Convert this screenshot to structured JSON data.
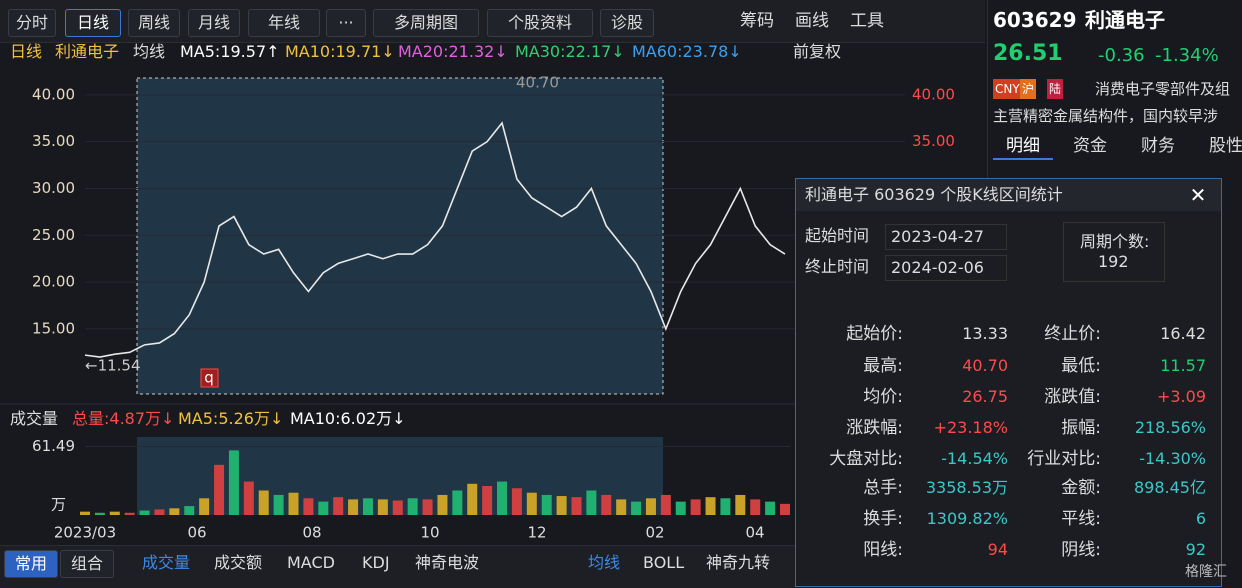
{
  "toolbar": {
    "left": [
      "分时",
      "日线",
      "周线",
      "月线",
      "年线",
      "···",
      "多周期图",
      "个股资料",
      "诊股"
    ],
    "right": [
      "筹码",
      "画线",
      "工具"
    ]
  },
  "legend": {
    "period": "日线",
    "name": "利通电子",
    "label": "均线",
    "ma": [
      "MA5:19.57↑",
      "MA10:19.71↓",
      "MA20:21.32↓",
      "MA30:22.17↓",
      "MA60:23.78↓"
    ],
    "adjust": "前复权"
  },
  "chart_data": {
    "type": "line",
    "color": "#e8e8e8",
    "ylim": [
      8.05,
      41.8
    ],
    "yticks": [
      {
        "value": 40,
        "label": "40.00"
      },
      {
        "value": 35,
        "label": "35.00"
      },
      {
        "value": 30,
        "label": "30.00"
      },
      {
        "value": 25,
        "label": "25.00"
      },
      {
        "value": 20,
        "label": "20.00"
      },
      {
        "value": 15,
        "label": "15.00"
      }
    ],
    "x_labels": [
      "2023/03",
      "06",
      "08",
      "10",
      "12",
      "02",
      "04"
    ],
    "values": [
      12.2,
      12.0,
      12.3,
      12.5,
      13.3,
      13.5,
      14.5,
      16.5,
      20,
      26,
      27,
      24,
      23,
      23.5,
      21,
      19,
      21,
      22,
      22.5,
      23,
      22.5,
      23,
      23,
      24,
      26,
      30,
      34,
      35,
      37,
      31,
      29,
      28,
      27,
      28,
      30,
      26,
      24,
      22,
      19,
      15,
      19,
      22,
      24,
      27,
      30,
      26,
      24,
      23
    ],
    "annotations": {
      "high": "40.70",
      "low": "←11.54",
      "marker": "q"
    }
  },
  "volume": {
    "type": "bar",
    "color": "#c9a227",
    "title": "成交量",
    "legend": [
      "总量:4.87万↓",
      "MA5:5.26万↓",
      "MA10:6.02万↓"
    ],
    "ylim": [
      0,
      70
    ],
    "yticks": [
      61.49
    ],
    "unit": "万",
    "values": [
      3,
      2,
      3,
      2,
      4,
      5,
      6,
      8,
      15,
      45,
      58,
      30,
      22,
      18,
      20,
      15,
      12,
      16,
      14,
      15,
      14,
      13,
      15,
      14,
      18,
      22,
      28,
      26,
      30,
      24,
      20,
      18,
      17,
      16,
      22,
      18,
      14,
      12,
      15,
      18,
      12,
      14,
      16,
      15,
      18,
      14,
      12,
      10
    ]
  },
  "quote": {
    "code": "603629",
    "name": "利通电子",
    "price": "26.51",
    "change": "-0.36",
    "pct": "-1.34%",
    "tags": [
      "CNY",
      "沪",
      "陆"
    ],
    "industry": "消费电子零部件及组",
    "business": "主营精密金属结构件，国内较早涉",
    "tabs": [
      "明细",
      "资金",
      "财务",
      "股性"
    ]
  },
  "popup": {
    "title": "利通电子  603629  个股K线区间统计",
    "start_label": "起始时间",
    "start": "2023-04-27",
    "end_label": "终止时间",
    "end": "2024-02-06",
    "count_label": "周期个数:",
    "count": "192",
    "rows": [
      [
        "起始价:",
        "13.33",
        "终止价:",
        "16.42"
      ],
      [
        "最高:",
        "40.70",
        "最低:",
        "11.57"
      ],
      [
        "均价:",
        "26.75",
        "涨跌值:",
        "+3.09"
      ],
      [
        "涨跌幅:",
        "+23.18%",
        "振幅:",
        "218.56%"
      ],
      [
        "大盘对比:",
        "-14.54%",
        "行业对比:",
        "-14.30%"
      ],
      [
        "总手:",
        "3358.53万",
        "金额:",
        "898.45亿"
      ],
      [
        "换手:",
        "1309.82%",
        "平线:",
        "6"
      ],
      [
        "阳线:",
        "94",
        "阴线:",
        "92"
      ]
    ]
  },
  "bottom": {
    "modes": [
      "常用",
      "组合"
    ],
    "indicators": [
      "成交量",
      "成交额",
      "MACD",
      "KDJ",
      "神奇电波"
    ],
    "overlays": [
      "均线",
      "BOLL",
      "神奇九转"
    ],
    "watermark": "格隆汇"
  }
}
